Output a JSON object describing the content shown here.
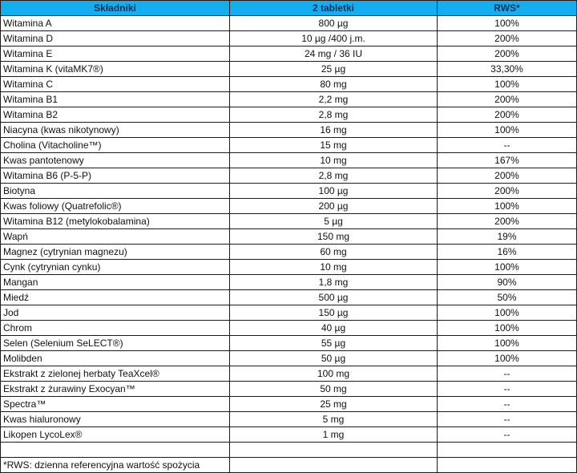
{
  "table": {
    "headers": [
      "Składniki",
      "2 tabletki",
      "RWS*"
    ],
    "rows": [
      {
        "name": "Witamina A",
        "amount": "800 µg",
        "rws": "100%"
      },
      {
        "name": "Witamina D",
        "amount": "10 µg /400 j.m.",
        "rws": "200%"
      },
      {
        "name": "Witamina E",
        "amount": "24 mg / 36 IU",
        "rws": "200%"
      },
      {
        "name": "Witamina K (vitaMK7®)",
        "amount": "25 µg",
        "rws": "33,30%"
      },
      {
        "name": "Witamina C",
        "amount": "80 mg",
        "rws": "100%"
      },
      {
        "name": "Witamina B1",
        "amount": "2,2 mg",
        "rws": "200%"
      },
      {
        "name": "Witamina B2",
        "amount": "2,8 mg",
        "rws": "200%"
      },
      {
        "name": "Niacyna (kwas nikotynowy)",
        "amount": "16 mg",
        "rws": "100%"
      },
      {
        "name": "Cholina (Vitacholine™)",
        "amount": "15 mg",
        "rws": "--"
      },
      {
        "name": "Kwas pantotenowy",
        "amount": "10 mg",
        "rws": "167%"
      },
      {
        "name": "Witamina B6 (P-5-P)",
        "amount": "2,8 mg",
        "rws": "200%"
      },
      {
        "name": "Biotyna",
        "amount": "100 µg",
        "rws": "200%"
      },
      {
        "name": "Kwas foliowy (Quatrefolic®)",
        "amount": "200 µg",
        "rws": "100%"
      },
      {
        "name": "Witamina B12 (metylokobalamina)",
        "amount": "5 µg",
        "rws": "200%"
      },
      {
        "name": "Wapń",
        "amount": "150 mg",
        "rws": "19%"
      },
      {
        "name": "Magnez (cytrynian magnezu)",
        "amount": "60 mg",
        "rws": "16%"
      },
      {
        "name": "Cynk (cytrynian cynku)",
        "amount": "10 mg",
        "rws": "100%"
      },
      {
        "name": "Mangan",
        "amount": "1,8 mg",
        "rws": "90%"
      },
      {
        "name": "Miedź",
        "amount": "500 µg",
        "rws": "50%"
      },
      {
        "name": "Jod",
        "amount": "150 µg",
        "rws": "100%"
      },
      {
        "name": "Chrom",
        "amount": "40 µg",
        "rws": "100%"
      },
      {
        "name": "Selen (Selenium SeLECT®)",
        "amount": "55 µg",
        "rws": "100%"
      },
      {
        "name": "Molibden",
        "amount": "50 µg",
        "rws": "100%"
      },
      {
        "name": "Ekstrakt z zielonej herbaty TeaXcel®",
        "amount": "100 mg",
        "rws": "--"
      },
      {
        "name": "Ekstrakt z żurawiny Exocyan™",
        "amount": "50 mg",
        "rws": "--"
      },
      {
        "name": "Spectra™",
        "amount": "25 mg",
        "rws": "--"
      },
      {
        "name": "Kwas hialuronowy",
        "amount": "5 mg",
        "rws": "--"
      },
      {
        "name": "Likopen LycoLex®",
        "amount": "1 mg",
        "rws": "--"
      },
      {
        "name": "",
        "amount": "",
        "rws": ""
      }
    ],
    "footnote": "*RWS: dzienna referencyjna wartość spożycia"
  },
  "colors": {
    "header_bg": "#14adee",
    "header_text": "#1a2f5a",
    "border": "#1a1a1a"
  }
}
